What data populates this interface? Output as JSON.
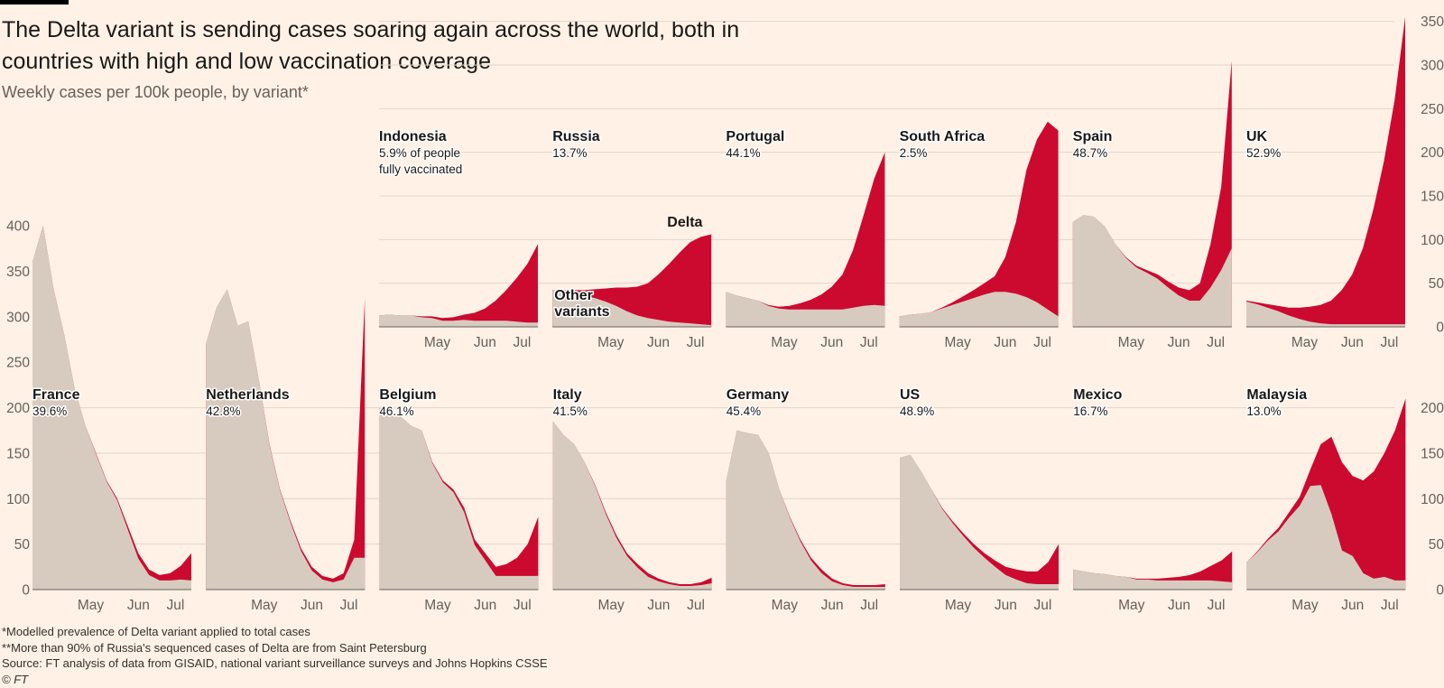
{
  "title": "The Delta variant is sending cases soaring again across the world, both in countries with high and low vaccination coverage",
  "subtitle": "Weekly cases per 100k people, by variant*",
  "footnotes": [
    "*Modelled prevalence of Delta variant applied to total cases",
    "**More than 90% of Russia's sequenced cases of Delta are from Saint Petersburg",
    "Source: FT analysis of data from GISAID, national variant surveillance surveys and Johns Hopkins CSSE"
  ],
  "copyright": "© FT",
  "colors": {
    "delta": "#cc0a2f",
    "other": "#d7cbc0",
    "background": "#fff1e5",
    "grid": "#e1d6cc"
  },
  "chart_data": {
    "type": "area",
    "stacked": true,
    "x_unit": "week",
    "x_ticks": [
      {
        "label": "May",
        "week": 5.5
      },
      {
        "label": "Jun",
        "week": 10
      },
      {
        "label": "Jul",
        "week": 13.5
      }
    ],
    "legend": {
      "delta": "Delta",
      "other": "Other variants",
      "panel": "Russia"
    },
    "rows": [
      {
        "ylim": [
          0,
          360
        ],
        "yticks": [
          0,
          50,
          100,
          150,
          200,
          250,
          300,
          350
        ],
        "panels": [
          {
            "country": "Indonesia",
            "vaccinated": "5.9% of people",
            "vaccinated_note": "fully vaccinated",
            "total": [
              13,
              14,
              13,
              13,
              12,
              12,
              10,
              11,
              14,
              16,
              21,
              30,
              42,
              56,
              72,
              95
            ],
            "delta": [
              0,
              0,
              0,
              0,
              1,
              2,
              3,
              4,
              6,
              9,
              14,
              23,
              35,
              50,
              67,
              90
            ]
          },
          {
            "country": "Russia",
            "vaccinated": "13.7%",
            "total": [
              42,
              42,
              42,
              42,
              43,
              44,
              45,
              45,
              46,
              50,
              60,
              72,
              85,
              97,
              103,
              106
            ],
            "delta": [
              0,
              1,
              3,
              6,
              10,
              15,
              21,
              27,
              33,
              40,
              52,
              66,
              80,
              93,
              100,
              104
            ]
          },
          {
            "country": "Portugal",
            "vaccinated": "44.1%",
            "total": [
              40,
              36,
              33,
              30,
              25,
              23,
              24,
              27,
              31,
              37,
              46,
              60,
              88,
              128,
              170,
              200
            ],
            "delta": [
              0,
              0,
              0,
              0,
              1,
              2,
              4,
              7,
              11,
              17,
              26,
              40,
              66,
              104,
              145,
              176
            ]
          },
          {
            "country": "South Africa",
            "vaccinated": "2.5%",
            "total": [
              12,
              14,
              15,
              17,
              22,
              28,
              35,
              42,
              50,
              58,
              80,
              120,
              180,
              215,
              235,
              225
            ],
            "delta": [
              0,
              0,
              0,
              0,
              1,
              3,
              6,
              9,
              13,
              18,
              40,
              82,
              146,
              187,
              215,
              213
            ]
          },
          {
            "country": "Spain",
            "vaccinated": "48.7%",
            "total": [
              120,
              128,
              126,
              115,
              95,
              80,
              70,
              65,
              60,
              52,
              45,
              42,
              50,
              95,
              160,
              305
            ],
            "delta": [
              0,
              0,
              0,
              0,
              0,
              1,
              2,
              3,
              5,
              7,
              9,
              12,
              20,
              50,
              95,
              215
            ]
          },
          {
            "country": "UK",
            "vaccinated": "52.9%",
            "total": [
              30,
              28,
              26,
              24,
              22,
              22,
              23,
              25,
              30,
              42,
              60,
              90,
              135,
              190,
              260,
              355
            ],
            "delta": [
              1,
              2,
              4,
              6,
              9,
              13,
              17,
              21,
              27,
              39,
              57,
              87,
              132,
              187,
              257,
              352
            ]
          }
        ]
      },
      {
        "ylim": [
          0,
          420
        ],
        "yticks": [
          0,
          50,
          100,
          150,
          200
        ],
        "panels": [
          {
            "country": "France",
            "vaccinated": "39.6%",
            "total": [
              360,
              400,
              330,
              280,
              220,
              180,
              150,
              120,
              100,
              70,
              40,
              22,
              16,
              18,
              26,
              40
            ],
            "delta": [
              0,
              0,
              0,
              0,
              0,
              0,
              1,
              1,
              2,
              4,
              6,
              6,
              6,
              8,
              15,
              30
            ]
          },
          {
            "country": "Netherlands",
            "vaccinated": "42.8%",
            "total": [
              270,
              310,
              330,
              290,
              295,
              230,
              160,
              110,
              75,
              45,
              25,
              15,
              12,
              18,
              55,
              320
            ],
            "delta": [
              0,
              0,
              0,
              0,
              0,
              0,
              1,
              1,
              2,
              3,
              4,
              4,
              4,
              7,
              20,
              285
            ]
          },
          {
            "country": "Belgium",
            "vaccinated": "46.1%",
            "total": [
              200,
              195,
              190,
              180,
              175,
              140,
              120,
              110,
              90,
              55,
              40,
              25,
              28,
              35,
              50,
              80
            ],
            "delta": [
              0,
              0,
              0,
              0,
              0,
              1,
              2,
              3,
              5,
              6,
              8,
              10,
              13,
              20,
              35,
              65
            ]
          },
          {
            "country": "Italy",
            "vaccinated": "41.5%",
            "total": [
              185,
              170,
              160,
              140,
              115,
              85,
              60,
              40,
              28,
              18,
              12,
              8,
              6,
              6,
              8,
              13
            ],
            "delta": [
              0,
              0,
              0,
              0,
              1,
              2,
              3,
              3,
              4,
              4,
              3,
              2,
              2,
              2,
              3,
              6
            ]
          },
          {
            "country": "Germany",
            "vaccinated": "45.4%",
            "total": [
              120,
              175,
              172,
              170,
              150,
              110,
              80,
              55,
              35,
              22,
              12,
              7,
              5,
              5,
              5,
              6
            ],
            "delta": [
              0,
              0,
              0,
              0,
              0,
              0,
              1,
              2,
              3,
              4,
              3,
              2,
              2,
              2,
              2,
              3
            ]
          },
          {
            "country": "US",
            "vaccinated": "48.9%",
            "total": [
              145,
              148,
              130,
              110,
              90,
              75,
              62,
              50,
              40,
              32,
              25,
              22,
              20,
              20,
              30,
              50
            ],
            "delta": [
              0,
              0,
              0,
              0,
              1,
              2,
              3,
              4,
              5,
              7,
              9,
              11,
              13,
              14,
              24,
              44
            ]
          },
          {
            "country": "Mexico",
            "vaccinated": "16.7%",
            "total": [
              22,
              20,
              18,
              17,
              15,
              14,
              12,
              12,
              12,
              13,
              14,
              16,
              20,
              26,
              32,
              42
            ],
            "delta": [
              0,
              0,
              0,
              0,
              0,
              0,
              1,
              1,
              2,
              3,
              4,
              6,
              10,
              16,
              23,
              34
            ]
          },
          {
            "country": "Malaysia",
            "vaccinated": "13.0%",
            "total": [
              30,
              42,
              56,
              68,
              85,
              102,
              132,
              160,
              168,
              140,
              125,
              120,
              130,
              150,
              175,
              210
            ],
            "delta": [
              0,
              1,
              2,
              4,
              6,
              10,
              18,
              45,
              85,
              97,
              88,
              102,
              118,
              136,
              165,
              200
            ]
          }
        ]
      }
    ]
  }
}
